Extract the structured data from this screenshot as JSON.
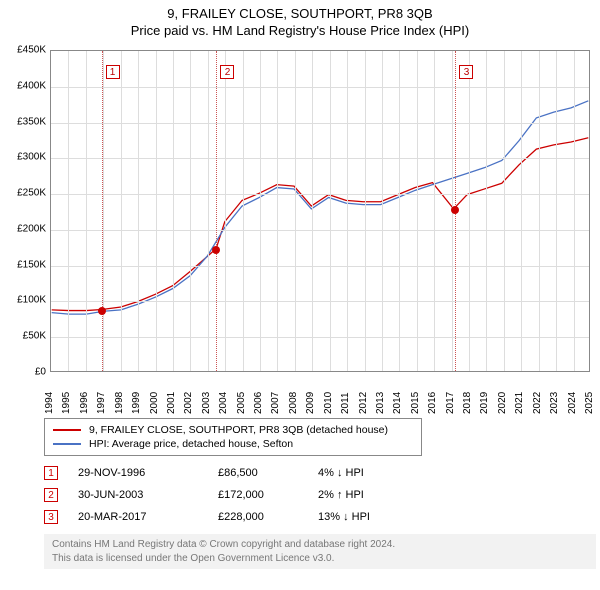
{
  "title": {
    "line1": "9, FRAILEY CLOSE, SOUTHPORT, PR8 3QB",
    "line2": "Price paid vs. HM Land Registry's House Price Index (HPI)"
  },
  "chart": {
    "type": "line",
    "background_color": "#ffffff",
    "grid_color": "#dddddd",
    "border_color": "#888888",
    "x": {
      "min": 1994,
      "max": 2025,
      "ticks": [
        1994,
        1995,
        1996,
        1997,
        1998,
        1999,
        2000,
        2001,
        2002,
        2003,
        2004,
        2005,
        2006,
        2007,
        2008,
        2009,
        2010,
        2011,
        2012,
        2013,
        2014,
        2015,
        2016,
        2017,
        2018,
        2019,
        2020,
        2021,
        2022,
        2023,
        2024,
        2025
      ]
    },
    "y": {
      "min": 0,
      "max": 450000,
      "ticks": [
        0,
        50000,
        100000,
        150000,
        200000,
        250000,
        300000,
        350000,
        400000,
        450000
      ],
      "tick_labels": [
        "£0",
        "£50K",
        "£100K",
        "£150K",
        "£200K",
        "£250K",
        "£300K",
        "£350K",
        "£400K",
        "£450K"
      ]
    },
    "series": [
      {
        "label": "9, FRAILEY CLOSE, SOUTHPORT, PR8 3QB (detached house)",
        "color": "#cc0000",
        "pts": [
          [
            1994,
            86000
          ],
          [
            1995,
            85000
          ],
          [
            1996,
            85000
          ],
          [
            1996.9,
            86500
          ],
          [
            1998,
            90000
          ],
          [
            1999,
            98000
          ],
          [
            2000,
            108000
          ],
          [
            2001,
            120000
          ],
          [
            2002,
            140000
          ],
          [
            2003.5,
            172000
          ],
          [
            2004,
            210000
          ],
          [
            2005,
            240000
          ],
          [
            2006,
            250000
          ],
          [
            2007,
            262000
          ],
          [
            2008,
            260000
          ],
          [
            2009,
            232000
          ],
          [
            2010,
            248000
          ],
          [
            2011,
            240000
          ],
          [
            2012,
            238000
          ],
          [
            2013,
            238000
          ],
          [
            2014,
            248000
          ],
          [
            2015,
            258000
          ],
          [
            2016,
            265000
          ],
          [
            2017.22,
            228000
          ],
          [
            2018,
            248000
          ],
          [
            2019,
            256000
          ],
          [
            2020,
            264000
          ],
          [
            2021,
            290000
          ],
          [
            2022,
            312000
          ],
          [
            2023,
            318000
          ],
          [
            2024,
            322000
          ],
          [
            2025,
            328000
          ]
        ]
      },
      {
        "label": "HPI: Average price, detached house, Sefton",
        "color": "#4a72c4",
        "pts": [
          [
            1994,
            82000
          ],
          [
            1995,
            80000
          ],
          [
            1996,
            80000
          ],
          [
            1997,
            84000
          ],
          [
            1998,
            86000
          ],
          [
            1999,
            94000
          ],
          [
            2000,
            104000
          ],
          [
            2001,
            116000
          ],
          [
            2002,
            134000
          ],
          [
            2003,
            162000
          ],
          [
            2004,
            202000
          ],
          [
            2005,
            232000
          ],
          [
            2006,
            244000
          ],
          [
            2007,
            258000
          ],
          [
            2008,
            256000
          ],
          [
            2009,
            228000
          ],
          [
            2010,
            244000
          ],
          [
            2011,
            236000
          ],
          [
            2012,
            234000
          ],
          [
            2013,
            234000
          ],
          [
            2014,
            244000
          ],
          [
            2015,
            254000
          ],
          [
            2016,
            262000
          ],
          [
            2017,
            270000
          ],
          [
            2018,
            278000
          ],
          [
            2019,
            286000
          ],
          [
            2020,
            296000
          ],
          [
            2021,
            324000
          ],
          [
            2022,
            356000
          ],
          [
            2023,
            364000
          ],
          [
            2024,
            370000
          ],
          [
            2025,
            380000
          ]
        ]
      }
    ],
    "markers": {
      "color": "#cc5555",
      "dot_color": "#cc0000",
      "dot_radius": 4,
      "events": [
        {
          "n": "1",
          "x": 1996.9,
          "y": 86500
        },
        {
          "n": "2",
          "x": 2003.5,
          "y": 172000
        },
        {
          "n": "3",
          "x": 2017.22,
          "y": 228000
        }
      ]
    }
  },
  "legend": [
    {
      "color": "#cc0000",
      "label": "9, FRAILEY CLOSE, SOUTHPORT, PR8 3QB (detached house)"
    },
    {
      "color": "#4a72c4",
      "label": "HPI: Average price, detached house, Sefton"
    }
  ],
  "events": [
    {
      "n": "1",
      "date": "29-NOV-1996",
      "price": "£86,500",
      "hpi": "4% ↓ HPI",
      "color": "#cc0000"
    },
    {
      "n": "2",
      "date": "30-JUN-2003",
      "price": "£172,000",
      "hpi": "2% ↑ HPI",
      "color": "#cc0000"
    },
    {
      "n": "3",
      "date": "20-MAR-2017",
      "price": "£228,000",
      "hpi": "13% ↓ HPI",
      "color": "#cc0000"
    }
  ],
  "attribution": {
    "line1": "Contains HM Land Registry data © Crown copyright and database right 2024.",
    "line2": "This data is licensed under the Open Government Licence v3.0."
  }
}
